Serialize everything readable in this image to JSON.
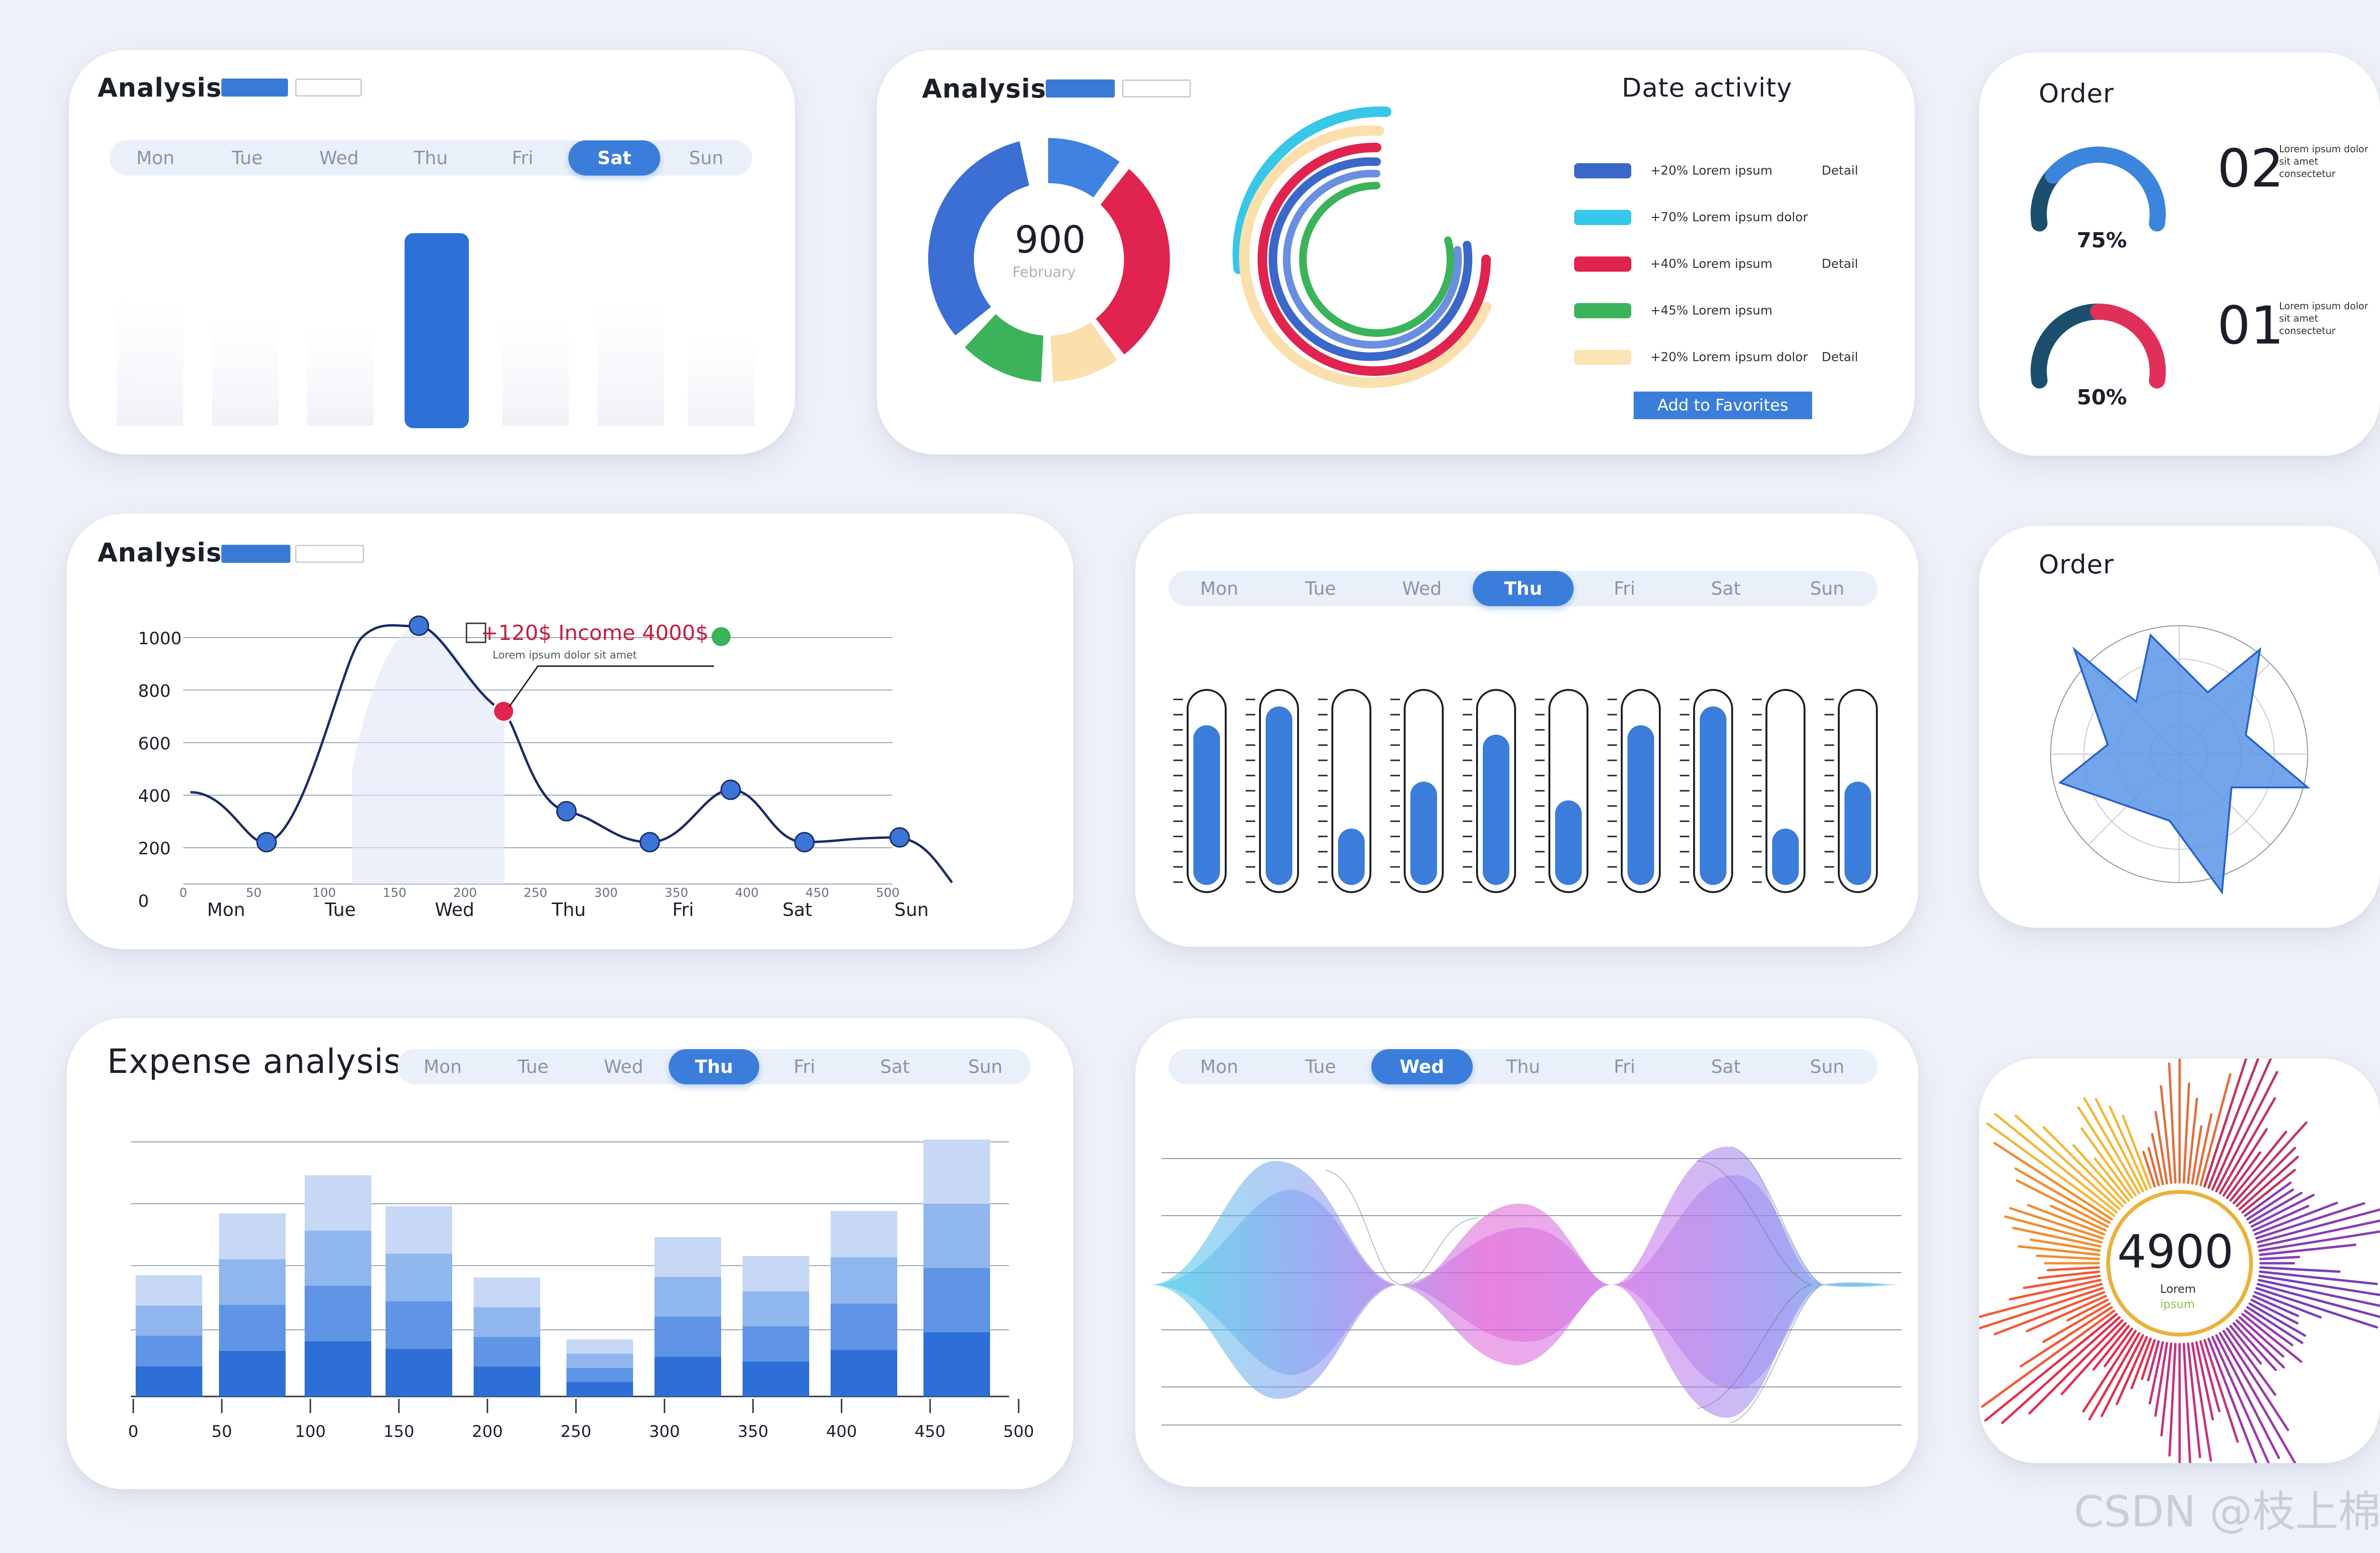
{
  "days_full": [
    "Mon",
    "Tue",
    "Wed",
    "Thu",
    "Fri",
    "Sat",
    "Sun"
  ],
  "days_card1": [
    "Mon",
    "Tue",
    "Wed",
    "Thu",
    "Fri",
    "Sat",
    "Sun"
  ],
  "card1": {
    "title": "Analysis",
    "active_day": "Sat",
    "pill_a": "",
    "pill_b": ""
  },
  "card2": {
    "title": "Analysis",
    "activity_title": "Date activity",
    "donut_value": "900",
    "donut_caption": "February",
    "legend": [
      {
        "color": "#3b67c9",
        "text": "+20% Lorem ipsum",
        "right": "Detail"
      },
      {
        "color": "#37c7e8",
        "text": "+70% Lorem ipsum dolor",
        "right": ""
      },
      {
        "color": "#e0244f",
        "text": "+40% Lorem ipsum",
        "right": "Detail"
      },
      {
        "color": "#3ab35a",
        "text": "+45% Lorem ipsum",
        "right": ""
      },
      {
        "color": "#fbe4b5",
        "text": "+20% Lorem ipsum dolor",
        "right": "Detail"
      }
    ],
    "button": "Add to Favorites",
    "colors": {
      "blue": "#3b6fd4",
      "red": "#e0244f",
      "green": "#3ab35a",
      "cream": "#fbe0ad",
      "cyan": "#37c7e8"
    }
  },
  "card3": {
    "title": "Order",
    "gauges": [
      {
        "pct_label": "75%",
        "fraction": 0.75,
        "big": "02",
        "desc": "Lorem ipsum dolor sit amet consectetur"
      },
      {
        "pct_label": "50%",
        "fraction": 0.5,
        "big": "01",
        "desc": "Lorem ipsum dolor sit amet consectetur"
      }
    ]
  },
  "card4": {
    "title": "Analysis",
    "y_ticks": [
      "1000",
      "800",
      "600",
      "400",
      "200",
      "0"
    ],
    "x_labels": [
      "Mon",
      "Tue",
      "Wed",
      "Thu",
      "Fri",
      "Sat",
      "Sun"
    ],
    "x_sub": [
      "0",
      "50",
      "100",
      "150",
      "200",
      "250",
      "300",
      "350",
      "400",
      "450",
      "500"
    ],
    "annotation": "+120$ Income 4000$",
    "annotation_sub": "Lorem ipsum dolor sit amet"
  },
  "card5": {
    "active_day": "Thu",
    "levels": [
      0.85,
      0.95,
      0.3,
      0.55,
      0.8,
      0.45,
      0.85,
      0.95,
      0.3,
      0.55
    ]
  },
  "card6": {
    "title": "Order"
  },
  "card7": {
    "title": "Expense analysis",
    "active_day": "Thu",
    "x_ticks": [
      "0",
      "50",
      "100",
      "150",
      "200",
      "250",
      "300",
      "350",
      "400",
      "450",
      "500"
    ]
  },
  "card8": {
    "active_day": "Wed"
  },
  "card9": {
    "value": "4900",
    "sub1": "Lorem",
    "sub2": "ipsum"
  },
  "watermark": "CSDN @枝上棉蛮"
}
